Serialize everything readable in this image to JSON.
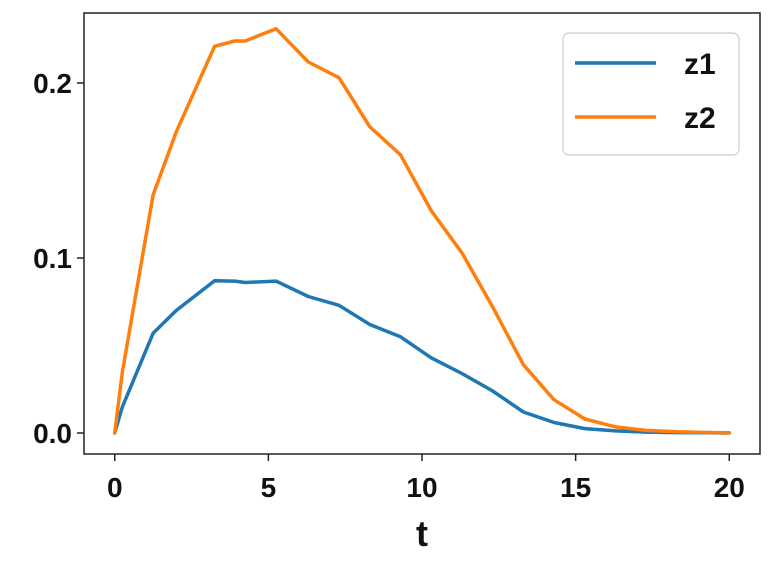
{
  "chart_data": {
    "type": "line",
    "title": "",
    "xlabel": "t",
    "ylabel": "",
    "xlim": [
      -1,
      21
    ],
    "ylim": [
      -0.012,
      0.24
    ],
    "xticks": [
      0,
      5,
      10,
      15,
      20
    ],
    "xtick_labels": [
      "0",
      "5",
      "10",
      "15",
      "20"
    ],
    "yticks": [
      0.0,
      0.1,
      0.2
    ],
    "ytick_labels": [
      "0.0",
      "0.1",
      "0.2"
    ],
    "grid": false,
    "legend": "top-right",
    "series": [
      {
        "name": "z1",
        "color": "#1f77b4",
        "x": [
          0,
          0.25,
          1.25,
          2,
          3.25,
          3.9,
          4.25,
          5.25,
          6.3,
          7.3,
          8.3,
          9.3,
          10.3,
          11.3,
          12.3,
          13.3,
          14.3,
          15.3,
          16.3,
          17.3,
          18.3,
          19.3,
          20
        ],
        "y": [
          0.0,
          0.015,
          0.057,
          0.07,
          0.087,
          0.0868,
          0.086,
          0.0868,
          0.078,
          0.073,
          0.062,
          0.055,
          0.043,
          0.034,
          0.024,
          0.012,
          0.006,
          0.0025,
          0.0012,
          0.0005,
          0.0002,
          0.0001,
          0.0
        ]
      },
      {
        "name": "z2",
        "color": "#ff7f0e",
        "x": [
          0,
          0.25,
          1.25,
          2,
          3.25,
          3.9,
          4.25,
          5.25,
          6.3,
          7.3,
          8.3,
          9.3,
          10.3,
          11.3,
          12.3,
          13.3,
          14.3,
          15.3,
          16.3,
          17.3,
          18.3,
          19.3,
          20
        ],
        "y": [
          0.0,
          0.035,
          0.136,
          0.172,
          0.221,
          0.224,
          0.224,
          0.231,
          0.212,
          0.203,
          0.175,
          0.159,
          0.127,
          0.103,
          0.072,
          0.039,
          0.019,
          0.008,
          0.0035,
          0.0015,
          0.0007,
          0.0003,
          0.0001
        ]
      }
    ]
  }
}
